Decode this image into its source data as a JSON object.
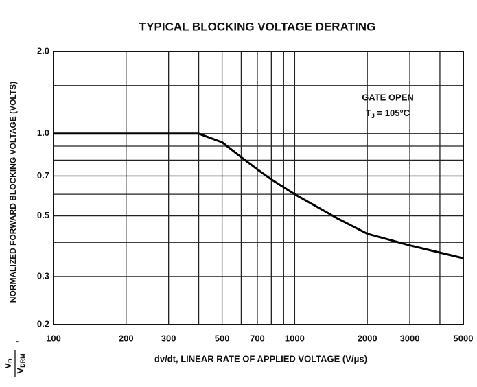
{
  "chart_data": {
    "type": "line",
    "title": "TYPICAL BLOCKING VOLTAGE DERATING",
    "xlabel": "dv/dt, LINEAR RATE OF APPLIED VOLTAGE (V/μs)",
    "ylabel": "NORMALIZED FORWARD BLOCKING VOLTAGE (VOLTS)",
    "ylabel_fraction": {
      "numerator": "V",
      "numerator_sub": "D",
      "denominator": "V",
      "denominator_sub": "DRM",
      "separator": ","
    },
    "annotation": {
      "line1": "GATE OPEN",
      "line2_symbol": "T",
      "line2_subscript": "J",
      "line2_rest": " = 105°C"
    },
    "xscale": "log",
    "yscale": "log",
    "grid": true,
    "xlim": [
      100,
      5000
    ],
    "ylim": [
      0.2,
      2.0
    ],
    "xticks": [
      100,
      200,
      300,
      500,
      700,
      1000,
      2000,
      3000,
      5000
    ],
    "xminor": [
      400,
      600,
      800,
      900,
      4000
    ],
    "yticks": [
      0.2,
      0.3,
      0.5,
      0.7,
      {
        "value": 1.0,
        "label": "1.0"
      },
      {
        "value": 2.0,
        "label": "2.0"
      }
    ],
    "yminor": [
      0.4,
      0.6,
      0.8,
      0.9,
      1.5
    ],
    "x": [
      100,
      200,
      300,
      400,
      500,
      600,
      700,
      800,
      1000,
      1500,
      2000,
      3000,
      5000
    ],
    "series": [
      {
        "color": "#000000",
        "values": [
          1.0,
          1.0,
          1.0,
          1.0,
          0.93,
          0.82,
          0.74,
          0.68,
          0.6,
          0.49,
          0.43,
          0.39,
          0.35
        ]
      }
    ]
  }
}
